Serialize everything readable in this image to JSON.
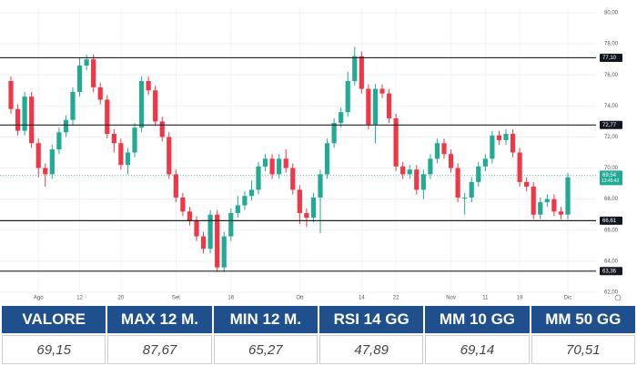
{
  "chart_data": {
    "type": "candlestick",
    "categories": [
      null,
      null,
      null,
      null,
      "Ago",
      null,
      null,
      null,
      null,
      null,
      "12",
      null,
      null,
      null,
      null,
      null,
      "20",
      null,
      null,
      null,
      null,
      null,
      null,
      null,
      "Set",
      null,
      null,
      null,
      null,
      null,
      null,
      null,
      "16",
      null,
      null,
      null,
      null,
      null,
      null,
      null,
      null,
      null,
      "Ott",
      null,
      null,
      null,
      null,
      null,
      null,
      null,
      null,
      "14",
      null,
      null,
      null,
      null,
      "22",
      null,
      null,
      null,
      null,
      null,
      null,
      null,
      "Nov",
      null,
      null,
      null,
      null,
      "11",
      null,
      null,
      null,
      null,
      "19",
      null,
      null,
      null,
      null,
      null,
      null,
      "Dic"
    ],
    "open": [
      75.6,
      73.8,
      72.4,
      74.6,
      71.6,
      70.0,
      69.6,
      71.2,
      72.3,
      73.1,
      74.9,
      76.6,
      77.0,
      75.2,
      74.4,
      72.2,
      71.6,
      70.2,
      71.0,
      72.6,
      75.6,
      75.0,
      73.0,
      72.0,
      69.6,
      68.1,
      67.2,
      66.6,
      65.6,
      64.8,
      67.0,
      63.6,
      65.6,
      67.1,
      67.6,
      68.2,
      68.6,
      70.1,
      70.6,
      69.6,
      70.6,
      70.0,
      68.6,
      67.1,
      66.8,
      68.1,
      69.6,
      71.6,
      72.9,
      73.6,
      75.6,
      77.2,
      75.1,
      72.8,
      75.1,
      74.8,
      73.2,
      70.1,
      69.6,
      69.9,
      68.6,
      69.6,
      70.6,
      71.6,
      70.9,
      70.0,
      68.1,
      68.1,
      69.1,
      70.1,
      70.6,
      72.1,
      71.8,
      72.2,
      71.0,
      69.1,
      68.8,
      67.0,
      67.8,
      68.0,
      67.2,
      67.0
    ],
    "high": [
      75.9,
      74.1,
      74.9,
      74.9,
      71.9,
      70.3,
      71.5,
      72.6,
      73.4,
      75.2,
      77.1,
      77.3,
      77.3,
      75.5,
      74.7,
      72.5,
      71.9,
      71.3,
      72.9,
      75.9,
      75.9,
      75.3,
      73.3,
      72.3,
      69.9,
      68.4,
      67.5,
      66.9,
      65.9,
      67.3,
      67.3,
      65.9,
      67.4,
      68.2,
      68.5,
      69.2,
      70.4,
      70.9,
      70.9,
      70.9,
      71.2,
      70.3,
      68.9,
      67.4,
      68.4,
      69.9,
      71.9,
      73.2,
      73.9,
      76.2,
      77.8,
      77.5,
      75.4,
      75.4,
      75.4,
      75.1,
      73.5,
      70.4,
      70.2,
      70.2,
      69.9,
      70.9,
      71.9,
      71.9,
      71.2,
      70.3,
      68.4,
      69.4,
      70.4,
      70.9,
      72.4,
      72.4,
      72.5,
      72.5,
      71.3,
      69.4,
      69.1,
      68.1,
      68.3,
      68.3,
      67.5,
      69.7
    ],
    "low": [
      73.5,
      72.1,
      72.1,
      71.3,
      69.4,
      68.8,
      69.3,
      70.9,
      72.0,
      72.8,
      74.6,
      76.3,
      74.9,
      74.1,
      71.9,
      71.0,
      69.9,
      69.6,
      70.7,
      72.3,
      74.7,
      72.7,
      71.7,
      69.3,
      67.8,
      66.9,
      66.3,
      65.3,
      64.5,
      64.5,
      63.3,
      63.3,
      65.3,
      66.8,
      67.3,
      67.9,
      68.3,
      69.8,
      69.3,
      69.3,
      69.7,
      68.3,
      66.4,
      66.2,
      66.5,
      65.8,
      69.3,
      71.3,
      72.6,
      73.3,
      75.3,
      74.8,
      72.5,
      71.6,
      74.5,
      72.9,
      69.8,
      69.3,
      69.3,
      68.3,
      68.0,
      69.3,
      70.3,
      70.6,
      69.7,
      67.8,
      67.0,
      67.8,
      68.8,
      69.8,
      70.3,
      71.5,
      71.5,
      70.7,
      68.8,
      68.5,
      66.7,
      66.7,
      67.5,
      66.9,
      66.7,
      66.7
    ],
    "close": [
      73.8,
      72.4,
      74.6,
      71.6,
      70.0,
      69.6,
      71.2,
      72.3,
      73.1,
      74.9,
      76.6,
      77.0,
      75.2,
      74.4,
      72.2,
      71.6,
      70.2,
      71.0,
      72.6,
      75.6,
      75.0,
      73.0,
      72.0,
      69.6,
      68.1,
      67.2,
      66.6,
      65.6,
      64.8,
      67.0,
      63.6,
      65.6,
      67.1,
      67.6,
      68.2,
      68.6,
      70.1,
      70.6,
      69.6,
      70.6,
      70.0,
      68.6,
      67.1,
      66.8,
      68.1,
      69.6,
      71.6,
      72.9,
      73.6,
      75.6,
      77.2,
      75.1,
      72.8,
      75.1,
      74.8,
      73.2,
      70.1,
      69.6,
      69.9,
      68.6,
      69.6,
      70.6,
      71.6,
      70.9,
      70.0,
      68.1,
      68.1,
      69.1,
      70.1,
      70.6,
      72.1,
      71.8,
      72.2,
      71.0,
      69.1,
      68.8,
      67.0,
      67.8,
      68.0,
      67.2,
      67.0,
      69.4
    ],
    "up_color": "#22ab94",
    "down_color": "#f23645",
    "ylim": [
      62,
      80
    ],
    "yticks": [
      {
        "value": 62,
        "label": "62,00"
      },
      {
        "value": 64,
        "label": "64,00"
      },
      {
        "value": 66,
        "label": "66,00"
      },
      {
        "value": 68,
        "label": "68,00"
      },
      {
        "value": 70,
        "label": "70,00"
      },
      {
        "value": 72,
        "label": "72,00"
      },
      {
        "value": 74,
        "label": "74,00"
      },
      {
        "value": 76,
        "label": "76,00"
      },
      {
        "value": 78,
        "label": "78,00"
      },
      {
        "value": 80,
        "label": "80,00"
      }
    ],
    "grid": true,
    "levels": [
      {
        "value": 77.1,
        "label": "77,10"
      },
      {
        "value": 72.77,
        "label": "72,77"
      },
      {
        "value": 66.61,
        "label": "66,61"
      },
      {
        "value": 63.36,
        "label": "63,36"
      }
    ],
    "last_price": {
      "value": 69.54,
      "label": "69,54",
      "color": "#22ab94"
    },
    "countdown": "13:45:42"
  },
  "table": {
    "header": [
      "VALORE",
      "MAX 12 M.",
      "MIN 12 M.",
      "RSI 14 GG",
      "MM 10 GG",
      "MM 50 GG"
    ],
    "rows": [
      [
        "69,15",
        "87,67",
        "65,27",
        "47,89",
        "69,14",
        "70,51"
      ]
    ]
  }
}
